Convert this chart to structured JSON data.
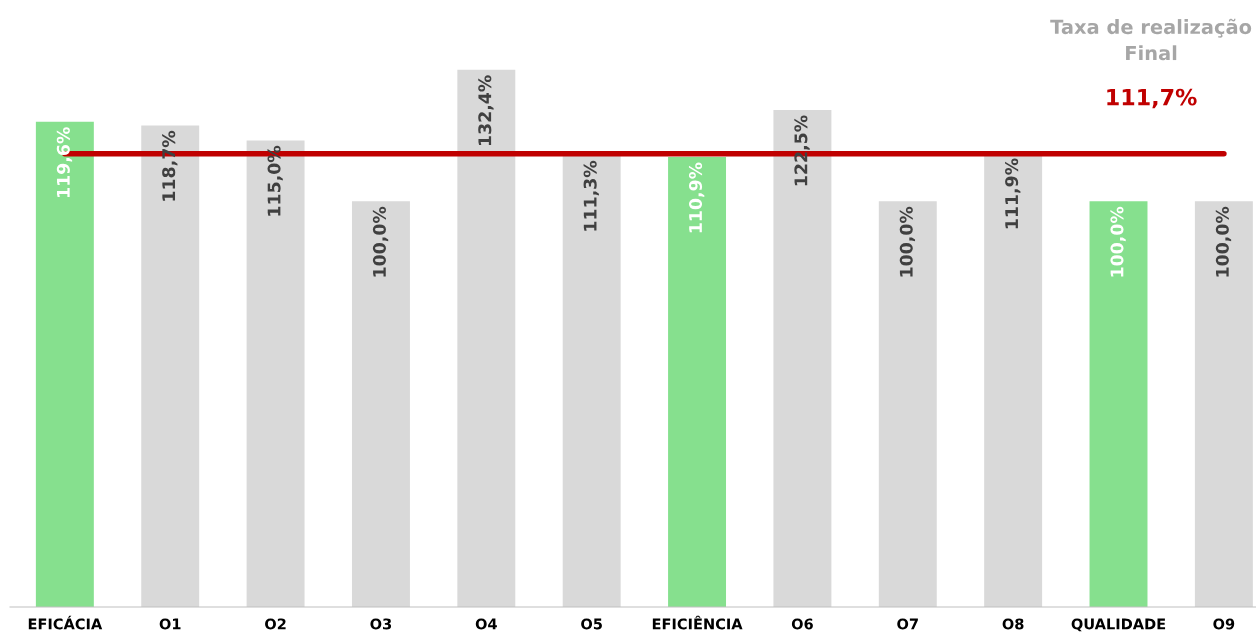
{
  "chart_data": {
    "type": "bar",
    "categories": [
      "EFICÁCIA",
      "O1",
      "O2",
      "O3",
      "O4",
      "O5",
      "EFICIÊNCIA",
      "O6",
      "O7",
      "O8",
      "QUALIDADE",
      "O9"
    ],
    "values": [
      119.6,
      118.7,
      115.0,
      100.0,
      132.4,
      111.3,
      110.9,
      122.5,
      100.0,
      111.9,
      100.0,
      100.0
    ],
    "value_labels": [
      "119,6%",
      "118,7%",
      "115,0%",
      "100,0%",
      "132,4%",
      "111,3%",
      "110,9%",
      "122,5%",
      "100,0%",
      "111,9%",
      "100,0%",
      "100,0%"
    ],
    "colors": [
      "#86e08e",
      "#d9d9d9",
      "#d9d9d9",
      "#d9d9d9",
      "#d9d9d9",
      "#d9d9d9",
      "#86e08e",
      "#d9d9d9",
      "#d9d9d9",
      "#d9d9d9",
      "#86e08e",
      "#d9d9d9"
    ],
    "tick_labels": "x",
    "ref_lines": [
      {
        "axis": "y",
        "value": 111.7,
        "label": "111,7%",
        "color": "#c00000"
      }
    ],
    "annotations": [
      "Taxa de realização\nFinal"
    ]
  }
}
